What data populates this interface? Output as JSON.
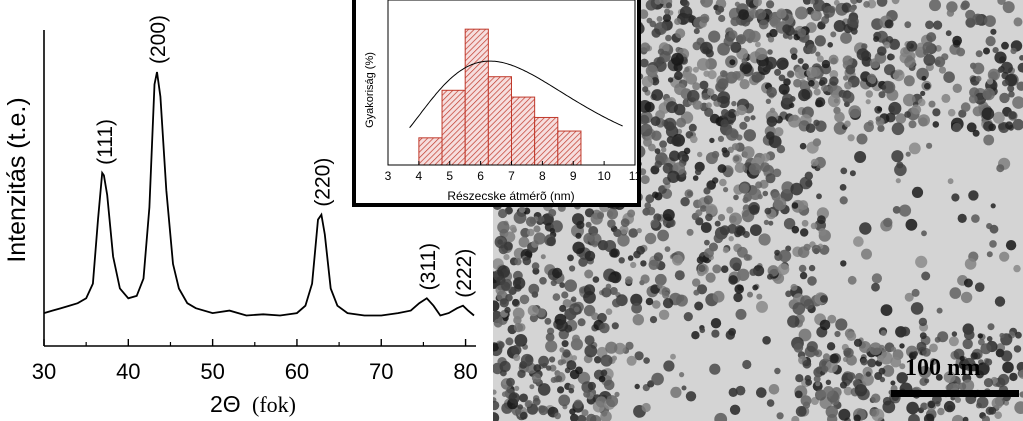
{
  "chart_data": [
    {
      "type": "line",
      "xlabel": "2Θ (fok)",
      "xlabel_main": "2Θ",
      "xlabel_unit": "(fok)",
      "ylabel": "Intenzitás (t.e.)",
      "xlim": [
        30,
        81
      ],
      "ylim": [
        0,
        100
      ],
      "x_ticks": [
        30,
        40,
        50,
        60,
        70,
        80
      ],
      "series": [
        {
          "x": [
            30,
            31,
            32,
            33,
            34,
            35,
            35.8,
            36.4,
            36.9,
            37.1,
            37.5,
            38.2,
            39,
            40,
            41,
            41.8,
            42.5,
            43.1,
            43.4,
            43.8,
            44.5,
            45.3,
            46,
            47,
            48,
            50,
            52,
            54,
            56,
            58,
            60,
            61,
            61.8,
            62.5,
            62.9,
            63.3,
            64,
            64.8,
            66,
            68,
            70,
            72,
            73.5,
            74.5,
            75.4,
            76.2,
            77,
            78,
            79,
            79.7,
            80.3,
            81
          ],
          "y": [
            2,
            3,
            4,
            5,
            6,
            8,
            14,
            40,
            59,
            58,
            50,
            25,
            12,
            8,
            9,
            16,
            45,
            95,
            100,
            90,
            52,
            22,
            12,
            6,
            4,
            2,
            3,
            1,
            1.5,
            1,
            2,
            5,
            14,
            40,
            42,
            34,
            12,
            5,
            2,
            1,
            1,
            2,
            3,
            6,
            8,
            5,
            1,
            2,
            4,
            5,
            3,
            1
          ]
        }
      ],
      "annotations": [
        {
          "label": "(111)",
          "x": 37.1,
          "y": 59
        },
        {
          "label": "(200)",
          "x": 43.4,
          "y": 100
        },
        {
          "label": "(220)",
          "x": 62.9,
          "y": 42
        },
        {
          "label": "(311)",
          "x": 75.4,
          "y": 8
        },
        {
          "label": "(222)",
          "x": 79.7,
          "y": 5
        }
      ],
      "grid": false
    },
    {
      "type": "bar",
      "xlabel": "Részecske átmérõ (nm)",
      "ylabel": "Gyakoriság (%)",
      "xlim": [
        3,
        11
      ],
      "x_ticks": [
        3,
        4,
        5,
        6,
        7,
        8,
        9,
        10,
        11
      ],
      "ylim": [
        0,
        24
      ],
      "bin_edges": [
        4,
        4.75,
        5.5,
        6.25,
        7,
        7.75,
        8.5,
        9.25
      ],
      "bin_width": 0.75,
      "values": [
        4,
        11,
        20,
        13,
        10,
        7,
        5
      ],
      "fit": {
        "type": "lognormal",
        "peak_x": 6.3,
        "peak_value": 15.3,
        "sigma": 1.45
      },
      "bar_color": "#c0392b",
      "grid": false
    }
  ],
  "tem_image": {
    "scale_label": "100 nm"
  }
}
